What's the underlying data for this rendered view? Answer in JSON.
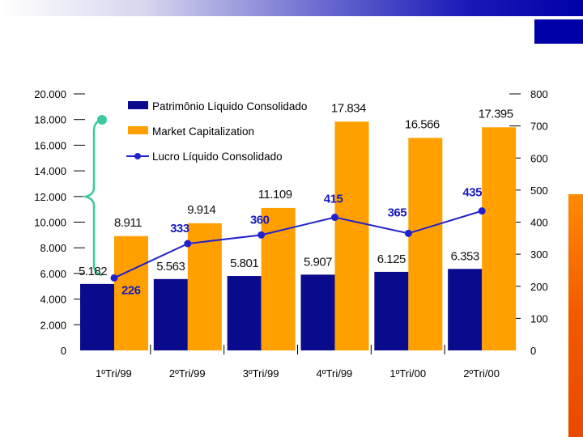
{
  "colors": {
    "equity": "#0a0a8c",
    "market": "#ffa000",
    "profit": "#2222cc",
    "bracket": "#3cc9a0"
  },
  "chart_data": {
    "type": "bar",
    "categories": [
      "1ºTri/99",
      "2ºTri/99",
      "3ºTri/99",
      "4ºTri/99",
      "1ºTri/00",
      "2ºTri/00"
    ],
    "series": [
      {
        "name": "Patrimônio Líquido Consolidado",
        "kind": "bar",
        "axis": "left",
        "values": [
          5182,
          5563,
          5801,
          5907,
          6125,
          6353
        ],
        "labels": [
          "5.182",
          "5.563",
          "5.801",
          "5.907",
          "6.125",
          "6.353"
        ]
      },
      {
        "name": "Market Capitalization",
        "kind": "bar",
        "axis": "left",
        "values": [
          8911,
          9914,
          11109,
          17834,
          16566,
          17395
        ],
        "labels": [
          "8.911",
          "9.914",
          "11.109",
          "17.834",
          "16.566",
          "17.395"
        ]
      },
      {
        "name": "Lucro Líquido Consolidado",
        "kind": "line",
        "axis": "right",
        "values": [
          226,
          333,
          360,
          415,
          365,
          435
        ],
        "labels": [
          "226",
          "333",
          "360",
          "415",
          "365",
          "435"
        ]
      }
    ],
    "left_axis": {
      "ylim": [
        0,
        20000
      ],
      "ticks": [
        "0",
        "2.000",
        "4.000",
        "6.000",
        "8.000",
        "10.000",
        "12.000",
        "14.000",
        "16.000",
        "18.000",
        "20.000"
      ]
    },
    "right_axis": {
      "ylim": [
        0,
        800
      ],
      "ticks": [
        "0",
        "100",
        "200",
        "300",
        "400",
        "500",
        "600",
        "700",
        "800"
      ]
    },
    "legend": [
      "Patrimônio Líquido Consolidado",
      "Market Capitalization",
      "Lucro Líquido Consolidado"
    ],
    "legend_position": "top-left"
  }
}
